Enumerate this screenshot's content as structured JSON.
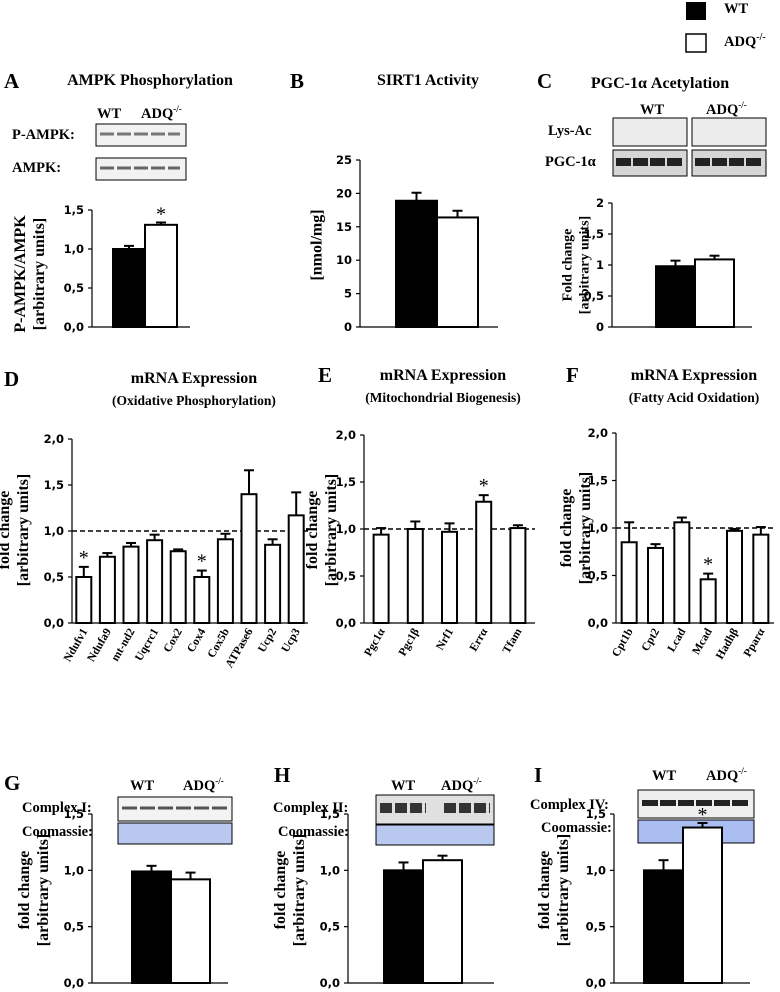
{
  "legend": {
    "wt": "WT",
    "adq": "ADQ",
    "adq_sup": "-/-"
  },
  "colors": {
    "wt": "#000000",
    "adq": "#ffffff",
    "coomassie": "#b8c8ee"
  },
  "blots": {
    "a": {
      "row1": "P-AMPK:",
      "row2": "AMPK:"
    },
    "c": {
      "row1": "Lys-Ac",
      "row2": "PGC-1α"
    },
    "g": {
      "row1": "Complex I:",
      "row2": "Coomassie:"
    },
    "h": {
      "row1": "Complex II:",
      "row2": "Coomassie:"
    },
    "i": {
      "row1": "Complex IV:",
      "row2": "Coomassie:"
    }
  },
  "chart_data": [
    {
      "id": "A",
      "type": "bar",
      "panel": "A",
      "title": "AMPK Phosphorylation",
      "ylabel": [
        "P-AMPK/AMPK",
        "[arbitrary units]"
      ],
      "ylim": [
        0,
        1.5
      ],
      "yticks": [
        "0,0",
        "0,5",
        "1,0",
        "1,5"
      ],
      "series": [
        {
          "name": "WT",
          "values": [
            1.0
          ],
          "err": [
            0.04
          ]
        },
        {
          "name": "ADQ-/-",
          "values": [
            1.31
          ],
          "err": [
            0.03
          ]
        }
      ],
      "significant": [
        1
      ]
    },
    {
      "id": "B",
      "type": "bar",
      "panel": "B",
      "title": "SIRT1 Activity",
      "ylabel": [
        "[nmol/mg]"
      ],
      "ylim": [
        0,
        25
      ],
      "yticks": [
        "0",
        "5",
        "10",
        "15",
        "20",
        "25"
      ],
      "series": [
        {
          "name": "WT",
          "values": [
            18.9
          ],
          "err": [
            1.2
          ]
        },
        {
          "name": "ADQ-/-",
          "values": [
            16.4
          ],
          "err": [
            1.0
          ]
        }
      ],
      "significant": []
    },
    {
      "id": "C",
      "type": "bar",
      "panel": "C",
      "title": "PGC-1α Acetylation",
      "ylabel": [
        "Fold change",
        "[arbitrary units]"
      ],
      "ylim": [
        0,
        2
      ],
      "yticks": [
        "0",
        "0,5",
        "1",
        "1,5",
        "2"
      ],
      "series": [
        {
          "name": "WT",
          "values": [
            0.98
          ],
          "err": [
            0.09
          ]
        },
        {
          "name": "ADQ-/-",
          "values": [
            1.09
          ],
          "err": [
            0.06
          ]
        }
      ],
      "significant": []
    },
    {
      "id": "D",
      "type": "bar",
      "panel": "D",
      "title": "mRNA Expression",
      "subtitle": "(Oxidative Phosphorylation)",
      "ylabel": [
        "fold change",
        "[arbitrary units]"
      ],
      "ylim": [
        0,
        2
      ],
      "yticks": [
        "0,0",
        "0,5",
        "1,0",
        "1,5",
        "2,0"
      ],
      "reference_line": 1.0,
      "categories": [
        "Ndufv1",
        "Ndufa9",
        "mt-nd2",
        "Uqcrc1",
        "Cox2",
        "Cox4",
        "Cox5b",
        "ATPase6",
        "Ucp2",
        "Ucp3"
      ],
      "values": [
        0.5,
        0.72,
        0.83,
        0.9,
        0.78,
        0.5,
        0.91,
        1.4,
        0.85,
        1.17
      ],
      "err": [
        0.11,
        0.04,
        0.04,
        0.06,
        0.02,
        0.07,
        0.06,
        0.26,
        0.06,
        0.25
      ],
      "significant": [
        0,
        5
      ]
    },
    {
      "id": "E",
      "type": "bar",
      "panel": "E",
      "title": "mRNA Expression",
      "subtitle": "(Mitochondrial Biogenesis)",
      "ylabel": [
        "fold change",
        "[arbitrary units]"
      ],
      "ylim": [
        0,
        2
      ],
      "yticks": [
        "0,0",
        "0,5",
        "1,0",
        "1,5",
        "2,0"
      ],
      "reference_line": 1.0,
      "categories": [
        "Pgc1α",
        "Pgc1β",
        "Nrf1",
        "Errα",
        "Tfam"
      ],
      "values": [
        0.94,
        1.0,
        0.97,
        1.29,
        1.01
      ],
      "err": [
        0.07,
        0.08,
        0.09,
        0.07,
        0.03
      ],
      "significant": [
        3
      ]
    },
    {
      "id": "F",
      "type": "bar",
      "panel": "F",
      "title": "mRNA Expression",
      "subtitle": "(Fatty Acid Oxidation)",
      "ylabel": [
        "fold change",
        "[arbitrary units]"
      ],
      "ylim": [
        0,
        2
      ],
      "yticks": [
        "0,0",
        "0,5",
        "1,0",
        "1,5",
        "2,0"
      ],
      "reference_line": 1.0,
      "categories": [
        "Cpt1b",
        "Cpt2",
        "Lcad",
        "Mcad",
        "Hadhβ",
        "Pparα"
      ],
      "values": [
        0.85,
        0.79,
        1.06,
        0.46,
        0.97,
        0.93
      ],
      "err": [
        0.21,
        0.04,
        0.05,
        0.06,
        0.02,
        0.08
      ],
      "significant": [
        3
      ]
    },
    {
      "id": "G",
      "type": "bar",
      "panel": "G",
      "ylabel": [
        "fold change",
        "[arbitrary units]"
      ],
      "ylim": [
        0,
        1.5
      ],
      "yticks": [
        "0,0",
        "0,5",
        "1,0",
        "1,5"
      ],
      "series": [
        {
          "name": "WT",
          "values": [
            0.99
          ],
          "err": [
            0.05
          ]
        },
        {
          "name": "ADQ-/-",
          "values": [
            0.92
          ],
          "err": [
            0.06
          ]
        }
      ],
      "significant": []
    },
    {
      "id": "H",
      "type": "bar",
      "panel": "H",
      "ylabel": [
        "fold change",
        "[arbitrary units]"
      ],
      "ylim": [
        0,
        1.5
      ],
      "yticks": [
        "0,0",
        "0,5",
        "1,0",
        "1,5"
      ],
      "series": [
        {
          "name": "WT",
          "values": [
            1.0
          ],
          "err": [
            0.07
          ]
        },
        {
          "name": "ADQ-/-",
          "values": [
            1.09
          ],
          "err": [
            0.04
          ]
        }
      ],
      "significant": []
    },
    {
      "id": "I",
      "type": "bar",
      "panel": "I",
      "ylabel": [
        "fold change",
        "[arbitrary units]"
      ],
      "ylim": [
        0,
        1.5
      ],
      "yticks": [
        "0,0",
        "0,5",
        "1,0",
        "1,5"
      ],
      "series": [
        {
          "name": "WT",
          "values": [
            1.0
          ],
          "err": [
            0.09
          ]
        },
        {
          "name": "ADQ-/-",
          "values": [
            1.38
          ],
          "err": [
            0.04
          ]
        }
      ],
      "significant": [
        1
      ]
    }
  ]
}
